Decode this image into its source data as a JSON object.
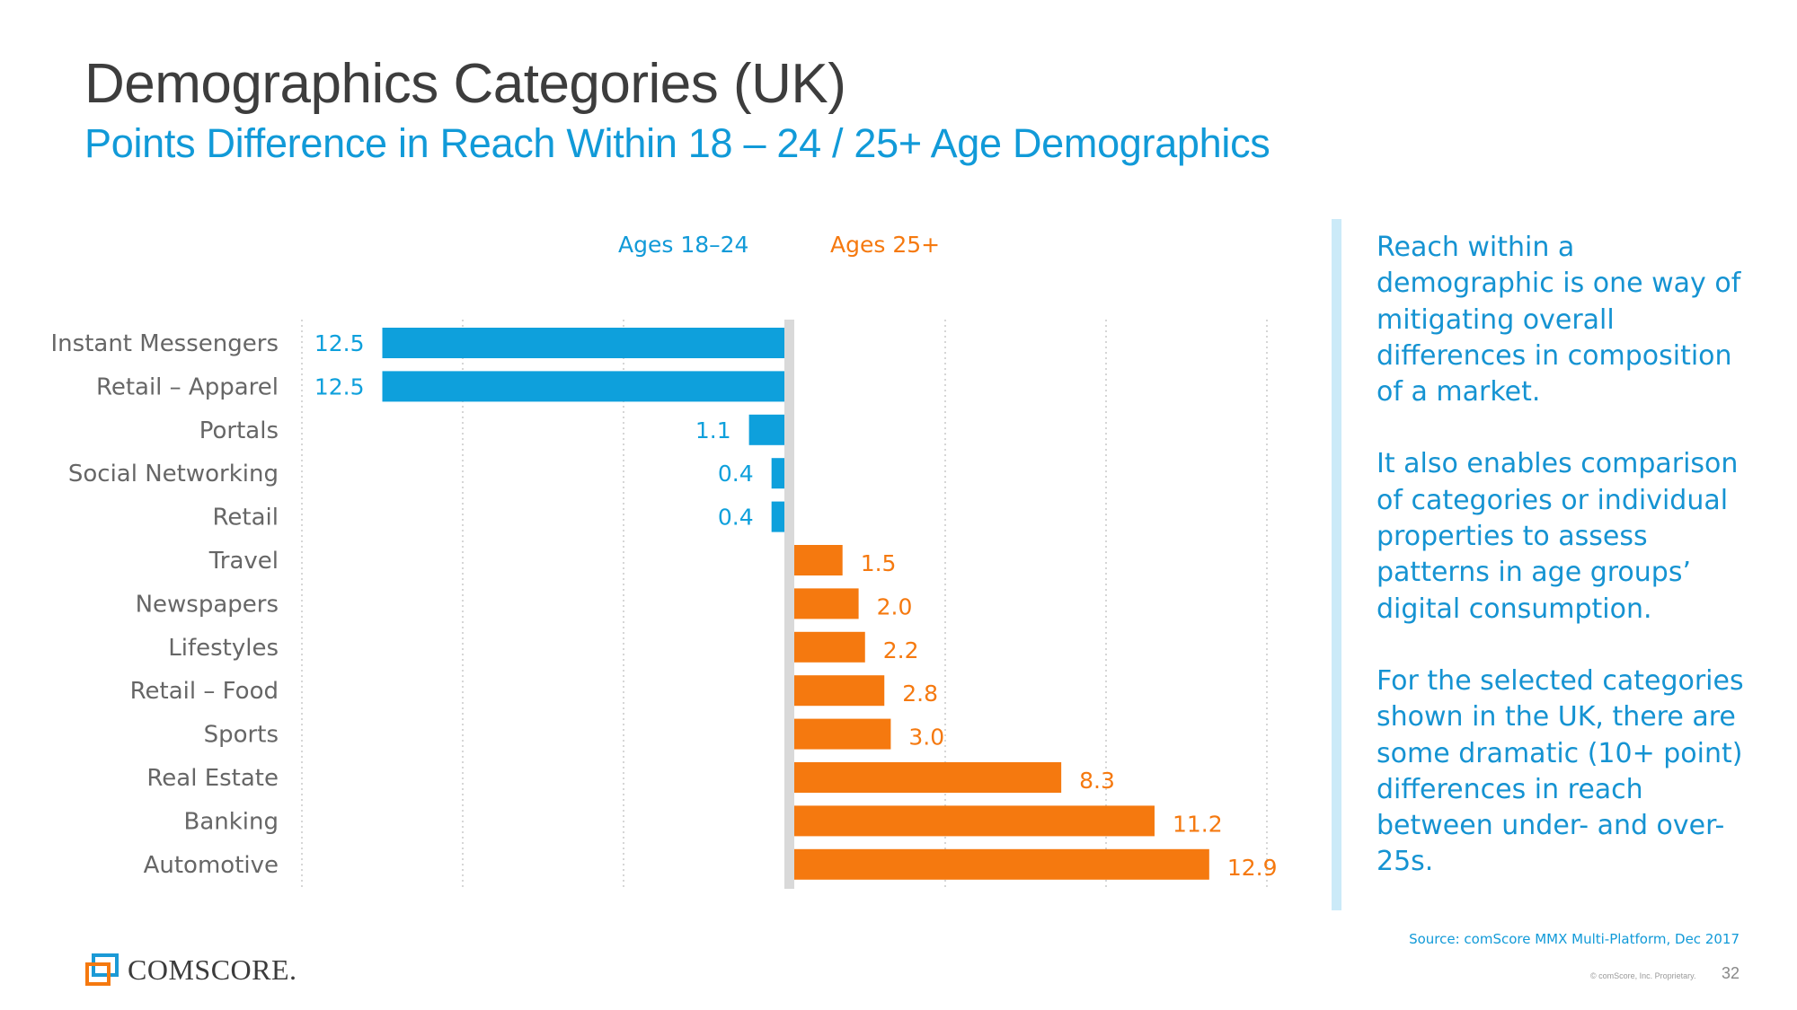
{
  "header": {
    "title": "Demographics Categories (UK)",
    "subtitle": "Points Difference in Reach Within 18 – 24 / 25+ Age Demographics"
  },
  "legend": {
    "left": "Ages 18–24",
    "right": "Ages 25+"
  },
  "colors": {
    "young": "#0ea0dc",
    "old": "#f5790f",
    "axis": "#d9d9d9",
    "grid": "#d6d6d6",
    "category_label": "#666666"
  },
  "chart_data": {
    "type": "bar",
    "orientation": "horizontal-diverging",
    "title": "Points Difference in Reach Within 18 – 24 / 25+ Age Demographics",
    "categories": [
      "Instant Messengers",
      "Retail – Apparel",
      "Portals",
      "Social Networking",
      "Retail",
      "Travel",
      "Newspapers",
      "Lifestyles",
      "Retail – Food",
      "Sports",
      "Real Estate",
      "Banking",
      "Automotive"
    ],
    "series": [
      {
        "name": "Ages 18–24",
        "values": [
          12.5,
          12.5,
          1.1,
          0.4,
          0.4,
          null,
          null,
          null,
          null,
          null,
          null,
          null,
          null
        ]
      },
      {
        "name": "Ages 25+",
        "values": [
          null,
          null,
          null,
          null,
          null,
          1.5,
          2.0,
          2.2,
          2.8,
          3.0,
          8.3,
          11.2,
          12.9
        ]
      }
    ],
    "value_labels": [
      "12.5",
      "12.5",
      "1.1",
      "0.4",
      "0.4",
      "1.5",
      "2.0",
      "2.2",
      "2.8",
      "3.0",
      "8.3",
      "11.2",
      "12.9"
    ],
    "xlim": [
      -15,
      15
    ],
    "xlabel": "",
    "ylabel": ""
  },
  "sidebar": {
    "paragraphs": [
      "Reach within a demographic is one way of mitigating overall differences in composition of a market.",
      "It also enables comparison of categories or individual properties to assess patterns in age groups’ digital consumption.",
      "For the selected categories shown in the UK, there are some dramatic (10+ point) differences in reach between under- and over-25s."
    ]
  },
  "footer": {
    "source": "Source: comScore MMX Multi-Platform, Dec 2017",
    "copyright": "© comScore, Inc. Proprietary.",
    "page_number": "32",
    "logo_text": "COMSCORE."
  }
}
